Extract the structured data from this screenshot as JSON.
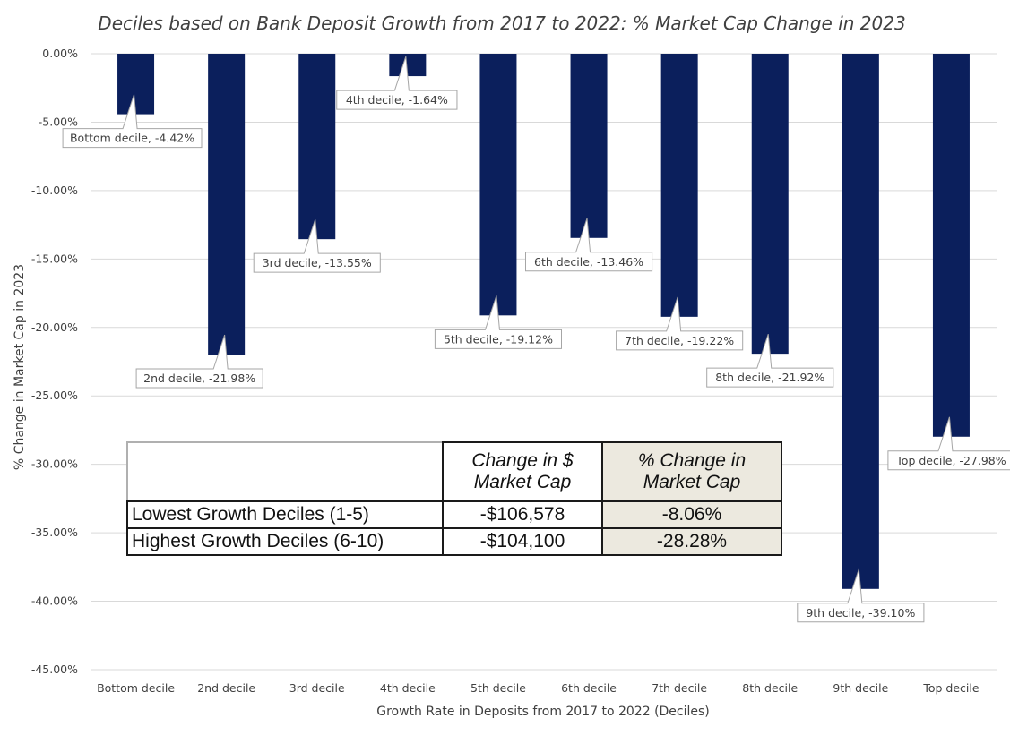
{
  "chart_data": {
    "type": "bar",
    "title": "Deciles based on Bank Deposit Growth from 2017 to 2022: % Market Cap Change in 2023",
    "xlabel": "Growth Rate in Deposits from 2017 to 2022 (Deciles)",
    "ylabel": "% Change in Market Cap in 2023",
    "ylim": [
      -45,
      0
    ],
    "yticks": [
      0,
      -5,
      -10,
      -15,
      -20,
      -25,
      -30,
      -35,
      -40,
      -45
    ],
    "ytick_labels": [
      "0.00%",
      "-5.00%",
      "-10.00%",
      "-15.00%",
      "-20.00%",
      "-25.00%",
      "-30.00%",
      "-35.00%",
      "-40.00%",
      "-45.00%"
    ],
    "grid": true,
    "bar_color": "#0b1f5c",
    "categories": [
      "Bottom decile",
      "2nd decile",
      "3rd decile",
      "4th decile",
      "5th decile",
      "6th decile",
      "7th decile",
      "8th decile",
      "9th decile",
      "Top decile"
    ],
    "values": [
      -4.42,
      -21.98,
      -13.55,
      -1.64,
      -19.12,
      -13.46,
      -19.22,
      -21.92,
      -39.1,
      -27.98
    ],
    "data_labels": [
      "Bottom decile, -4.42%",
      "2nd decile, -21.98%",
      "3rd decile, -13.55%",
      "4th decile, -1.64%",
      "5th decile, -19.12%",
      "6th decile, -13.46%",
      "7th decile, -19.22%",
      "8th decile, -21.92%",
      "9th decile, -39.10%",
      "Top decile, -27.98%"
    ]
  },
  "summary_table": {
    "headers": [
      "",
      "Change in $ Market Cap",
      "% Change in Market Cap"
    ],
    "rows": [
      [
        "Lowest Growth Deciles (1-5)",
        "-$106,578",
        "-8.06%"
      ],
      [
        "Highest Growth Deciles (6-10)",
        "-$104,100",
        "-28.28%"
      ]
    ]
  }
}
